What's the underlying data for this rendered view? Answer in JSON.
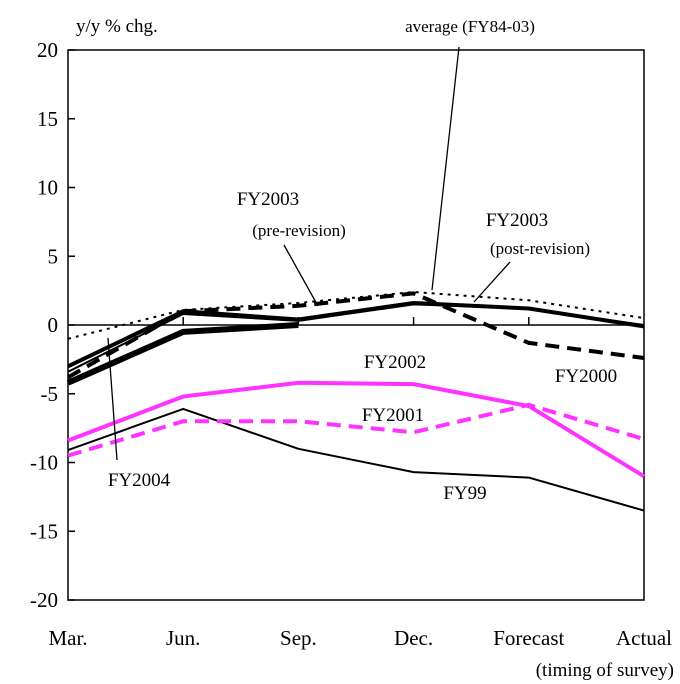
{
  "chart_data": {
    "type": "line",
    "ylabel": "y/y % chg.",
    "xlabel": "(timing of survey)",
    "categories": [
      "Mar.",
      "Jun.",
      "Sep.",
      "Dec.",
      "Forecast",
      "Actual"
    ],
    "ylim": [
      -20,
      20
    ],
    "yticks": [
      "20",
      "15",
      "10",
      "5",
      "0",
      "-5",
      "-10",
      "-15",
      "-20"
    ],
    "grid": false,
    "series": [
      {
        "name": "FY99",
        "values": [
          -9.1,
          -6.1,
          -9.0,
          -10.7,
          -11.1,
          -13.5
        ],
        "color": "#000000",
        "width": 2,
        "dash": ""
      },
      {
        "name": "FY2000",
        "values": [
          -3.8,
          1.0,
          1.4,
          2.3,
          -1.3,
          -2.4
        ],
        "color": "#000000",
        "width": 4,
        "dash": "14,8"
      },
      {
        "name": "FY2001",
        "values": [
          -9.5,
          -7.0,
          -7.0,
          -7.8,
          -5.8,
          -8.3
        ],
        "color": "#ff33ff",
        "width": 4,
        "dash": "14,8"
      },
      {
        "name": "FY2002",
        "values": [
          -8.4,
          -5.2,
          -4.2,
          -4.3,
          -5.9,
          -11.0
        ],
        "color": "#ff33ff",
        "width": 4,
        "dash": ""
      },
      {
        "name": "FY2003 (pre-revision)",
        "values": [
          -3.0,
          1.0,
          0.4,
          1.6,
          1.2,
          -0.1
        ],
        "color": "#000000",
        "width": 4,
        "dash": ""
      },
      {
        "name": "FY2003 (post-revision)",
        "values": [
          -3.4,
          0.8,
          0.3,
          1.5,
          1.2,
          0.0
        ],
        "color": "#000000",
        "width": 2,
        "dash": ""
      },
      {
        "name": "average (FY84-03)",
        "values": [
          -1.0,
          1.1,
          1.6,
          2.4,
          1.8,
          0.5
        ],
        "color": "#000000",
        "width": 2,
        "dash": "3,5"
      },
      {
        "name": "FY2004",
        "values": [
          -4.2,
          -0.5,
          0.0,
          null,
          null,
          null
        ],
        "color": "#000000",
        "width": 6,
        "dash": ""
      }
    ],
    "annotations": [
      {
        "text": "average (FY84-03)"
      },
      {
        "text": "FY2003"
      },
      {
        "text": "(pre-revision)"
      },
      {
        "text": "FY2003"
      },
      {
        "text": "(post-revision)"
      },
      {
        "text": "FY2002"
      },
      {
        "text": "FY2000"
      },
      {
        "text": "FY2001"
      },
      {
        "text": "FY2004"
      },
      {
        "text": "FY99"
      }
    ]
  }
}
